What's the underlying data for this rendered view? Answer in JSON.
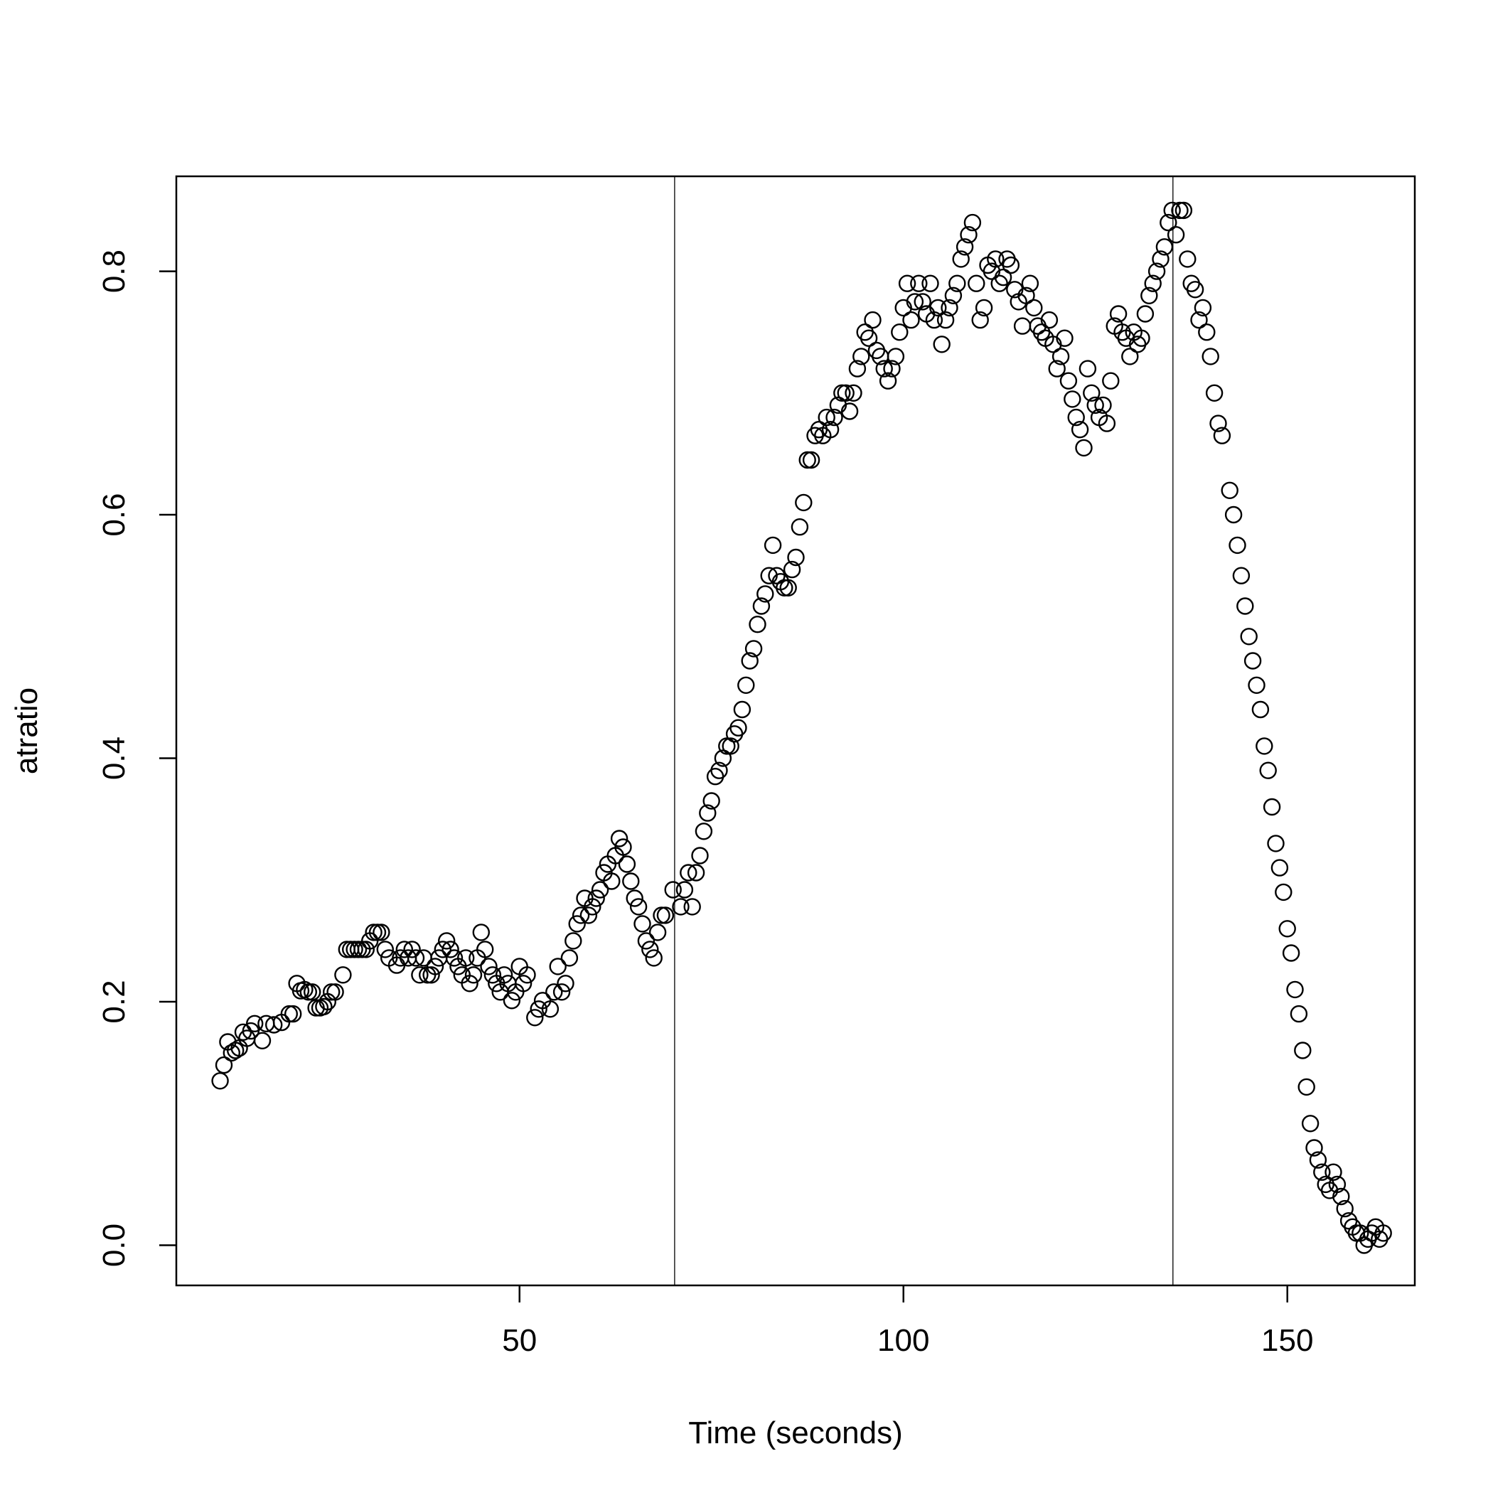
{
  "chart_data": {
    "type": "scatter",
    "title": "",
    "xlabel": "Time (seconds)",
    "ylabel": "atratio",
    "xlim": [
      5.3,
      166.6
    ],
    "ylim": [
      -0.033,
      0.878
    ],
    "xticks": [
      50,
      100,
      150
    ],
    "yticks": [
      0.0,
      0.2,
      0.4,
      0.6,
      0.8
    ],
    "xtick_labels": [
      "50",
      "100",
      "150"
    ],
    "ytick_labels": [
      "0.0",
      "0.2",
      "0.4",
      "0.6",
      "0.8"
    ],
    "vlines": [
      70.2,
      135.1
    ],
    "grid": false,
    "legend": "none",
    "marker": "open-circle",
    "color": "#000000",
    "points": [
      [
        11,
        0.135
      ],
      [
        11.5,
        0.148
      ],
      [
        12,
        0.167
      ],
      [
        12.5,
        0.158
      ],
      [
        13,
        0.16
      ],
      [
        13.5,
        0.162
      ],
      [
        14,
        0.175
      ],
      [
        14.5,
        0.17
      ],
      [
        15,
        0.176
      ],
      [
        15.5,
        0.182
      ],
      [
        16.5,
        0.168
      ],
      [
        17,
        0.182
      ],
      [
        18,
        0.181
      ],
      [
        19,
        0.183
      ],
      [
        20,
        0.19
      ],
      [
        20.5,
        0.19
      ],
      [
        21,
        0.215
      ],
      [
        21.5,
        0.209
      ],
      [
        22,
        0.21
      ],
      [
        22.5,
        0.208
      ],
      [
        23,
        0.208
      ],
      [
        23.5,
        0.195
      ],
      [
        24,
        0.195
      ],
      [
        24.5,
        0.196
      ],
      [
        25,
        0.2
      ],
      [
        25.5,
        0.208
      ],
      [
        26,
        0.208
      ],
      [
        27,
        0.222
      ],
      [
        27.5,
        0.243
      ],
      [
        28,
        0.243
      ],
      [
        28.5,
        0.243
      ],
      [
        29,
        0.243
      ],
      [
        29.5,
        0.243
      ],
      [
        30,
        0.243
      ],
      [
        30.5,
        0.25
      ],
      [
        31,
        0.257
      ],
      [
        31.5,
        0.257
      ],
      [
        32,
        0.257
      ],
      [
        32.5,
        0.243
      ],
      [
        33,
        0.236
      ],
      [
        34,
        0.23
      ],
      [
        34.5,
        0.236
      ],
      [
        35,
        0.243
      ],
      [
        35.5,
        0.236
      ],
      [
        36,
        0.243
      ],
      [
        36.5,
        0.236
      ],
      [
        37,
        0.222
      ],
      [
        37.5,
        0.236
      ],
      [
        38,
        0.222
      ],
      [
        38.5,
        0.222
      ],
      [
        39,
        0.229
      ],
      [
        39.5,
        0.236
      ],
      [
        40,
        0.243
      ],
      [
        40.5,
        0.25
      ],
      [
        41,
        0.243
      ],
      [
        41.5,
        0.236
      ],
      [
        42,
        0.229
      ],
      [
        42.5,
        0.222
      ],
      [
        43,
        0.236
      ],
      [
        43.5,
        0.215
      ],
      [
        44,
        0.222
      ],
      [
        44.5,
        0.236
      ],
      [
        45,
        0.257
      ],
      [
        45.5,
        0.243
      ],
      [
        46,
        0.229
      ],
      [
        46.5,
        0.222
      ],
      [
        47,
        0.215
      ],
      [
        47.5,
        0.208
      ],
      [
        48,
        0.222
      ],
      [
        48.5,
        0.215
      ],
      [
        49,
        0.201
      ],
      [
        49.5,
        0.208
      ],
      [
        50,
        0.229
      ],
      [
        50.5,
        0.215
      ],
      [
        51,
        0.222
      ],
      [
        52,
        0.187
      ],
      [
        52.5,
        0.194
      ],
      [
        53,
        0.201
      ],
      [
        54,
        0.194
      ],
      [
        54.5,
        0.208
      ],
      [
        55,
        0.229
      ],
      [
        55.5,
        0.208
      ],
      [
        56,
        0.215
      ],
      [
        56.5,
        0.236
      ],
      [
        57,
        0.25
      ],
      [
        57.5,
        0.264
      ],
      [
        58,
        0.271
      ],
      [
        58.5,
        0.285
      ],
      [
        59,
        0.271
      ],
      [
        59.5,
        0.278
      ],
      [
        60,
        0.285
      ],
      [
        60.5,
        0.292
      ],
      [
        61,
        0.306
      ],
      [
        61.5,
        0.313
      ],
      [
        62,
        0.299
      ],
      [
        62.5,
        0.32
      ],
      [
        63,
        0.334
      ],
      [
        63.5,
        0.327
      ],
      [
        64,
        0.313
      ],
      [
        64.5,
        0.299
      ],
      [
        65,
        0.285
      ],
      [
        65.5,
        0.278
      ],
      [
        66,
        0.264
      ],
      [
        66.5,
        0.25
      ],
      [
        67,
        0.243
      ],
      [
        67.5,
        0.236
      ],
      [
        68,
        0.257
      ],
      [
        68.5,
        0.271
      ],
      [
        69,
        0.271
      ],
      [
        70,
        0.292
      ],
      [
        71,
        0.278
      ],
      [
        71.5,
        0.292
      ],
      [
        72,
        0.306
      ],
      [
        72.5,
        0.278
      ],
      [
        73,
        0.306
      ],
      [
        73.5,
        0.32
      ],
      [
        74,
        0.34
      ],
      [
        74.5,
        0.355
      ],
      [
        75,
        0.365
      ],
      [
        75.5,
        0.385
      ],
      [
        76,
        0.39
      ],
      [
        76.5,
        0.4
      ],
      [
        77,
        0.41
      ],
      [
        77.5,
        0.41
      ],
      [
        78,
        0.42
      ],
      [
        78.5,
        0.425
      ],
      [
        79,
        0.44
      ],
      [
        79.5,
        0.46
      ],
      [
        80,
        0.48
      ],
      [
        80.5,
        0.49
      ],
      [
        81,
        0.51
      ],
      [
        81.5,
        0.525
      ],
      [
        82,
        0.535
      ],
      [
        82.5,
        0.55
      ],
      [
        83,
        0.575
      ],
      [
        83.5,
        0.55
      ],
      [
        84,
        0.545
      ],
      [
        84.5,
        0.54
      ],
      [
        85,
        0.54
      ],
      [
        85.5,
        0.555
      ],
      [
        86,
        0.565
      ],
      [
        86.5,
        0.59
      ],
      [
        87,
        0.61
      ],
      [
        87.5,
        0.645
      ],
      [
        88,
        0.645
      ],
      [
        88.5,
        0.665
      ],
      [
        89,
        0.67
      ],
      [
        89.5,
        0.665
      ],
      [
        90,
        0.68
      ],
      [
        90.5,
        0.67
      ],
      [
        91,
        0.68
      ],
      [
        91.5,
        0.69
      ],
      [
        92,
        0.7
      ],
      [
        92.5,
        0.7
      ],
      [
        93,
        0.685
      ],
      [
        93.5,
        0.7
      ],
      [
        94,
        0.72
      ],
      [
        94.5,
        0.73
      ],
      [
        95,
        0.75
      ],
      [
        95.5,
        0.745
      ],
      [
        96,
        0.76
      ],
      [
        96.5,
        0.735
      ],
      [
        97,
        0.73
      ],
      [
        97.5,
        0.72
      ],
      [
        98,
        0.71
      ],
      [
        98.5,
        0.72
      ],
      [
        99,
        0.73
      ],
      [
        99.5,
        0.75
      ],
      [
        100,
        0.77
      ],
      [
        100.5,
        0.79
      ],
      [
        101,
        0.76
      ],
      [
        101.5,
        0.775
      ],
      [
        102,
        0.79
      ],
      [
        102.5,
        0.775
      ],
      [
        103,
        0.765
      ],
      [
        103.5,
        0.79
      ],
      [
        104,
        0.76
      ],
      [
        104.5,
        0.77
      ],
      [
        105,
        0.74
      ],
      [
        105.5,
        0.76
      ],
      [
        106,
        0.77
      ],
      [
        106.5,
        0.78
      ],
      [
        107,
        0.79
      ],
      [
        107.5,
        0.81
      ],
      [
        108,
        0.82
      ],
      [
        108.5,
        0.83
      ],
      [
        109,
        0.84
      ],
      [
        109.5,
        0.79
      ],
      [
        110,
        0.76
      ],
      [
        110.5,
        0.77
      ],
      [
        111,
        0.805
      ],
      [
        111.5,
        0.8
      ],
      [
        112,
        0.81
      ],
      [
        112.5,
        0.79
      ],
      [
        113,
        0.795
      ],
      [
        113.5,
        0.81
      ],
      [
        114,
        0.805
      ],
      [
        114.5,
        0.785
      ],
      [
        115,
        0.775
      ],
      [
        115.5,
        0.755
      ],
      [
        116,
        0.78
      ],
      [
        116.5,
        0.79
      ],
      [
        117,
        0.77
      ],
      [
        117.5,
        0.755
      ],
      [
        118,
        0.75
      ],
      [
        118.5,
        0.745
      ],
      [
        119,
        0.76
      ],
      [
        119.5,
        0.74
      ],
      [
        120,
        0.72
      ],
      [
        120.5,
        0.73
      ],
      [
        121,
        0.745
      ],
      [
        121.5,
        0.71
      ],
      [
        122,
        0.695
      ],
      [
        122.5,
        0.68
      ],
      [
        123,
        0.67
      ],
      [
        123.5,
        0.655
      ],
      [
        124,
        0.72
      ],
      [
        124.5,
        0.7
      ],
      [
        125,
        0.69
      ],
      [
        125.5,
        0.68
      ],
      [
        126,
        0.69
      ],
      [
        126.5,
        0.675
      ],
      [
        127,
        0.71
      ],
      [
        127.5,
        0.755
      ],
      [
        128,
        0.765
      ],
      [
        128.5,
        0.75
      ],
      [
        129,
        0.745
      ],
      [
        129.5,
        0.73
      ],
      [
        130,
        0.75
      ],
      [
        130.5,
        0.74
      ],
      [
        131,
        0.745
      ],
      [
        131.5,
        0.765
      ],
      [
        132,
        0.78
      ],
      [
        132.5,
        0.79
      ],
      [
        133,
        0.8
      ],
      [
        133.5,
        0.81
      ],
      [
        134,
        0.82
      ],
      [
        134.5,
        0.84
      ],
      [
        135,
        0.85
      ],
      [
        135.5,
        0.83
      ],
      [
        136,
        0.85
      ],
      [
        136.5,
        0.85
      ],
      [
        137,
        0.81
      ],
      [
        137.5,
        0.79
      ],
      [
        138,
        0.785
      ],
      [
        138.5,
        0.76
      ],
      [
        139,
        0.77
      ],
      [
        139.5,
        0.75
      ],
      [
        140,
        0.73
      ],
      [
        140.5,
        0.7
      ],
      [
        141,
        0.675
      ],
      [
        141.5,
        0.665
      ],
      [
        142.5,
        0.62
      ],
      [
        143,
        0.6
      ],
      [
        143.5,
        0.575
      ],
      [
        144,
        0.55
      ],
      [
        144.5,
        0.525
      ],
      [
        145,
        0.5
      ],
      [
        145.5,
        0.48
      ],
      [
        146,
        0.46
      ],
      [
        146.5,
        0.44
      ],
      [
        147,
        0.41
      ],
      [
        147.5,
        0.39
      ],
      [
        148,
        0.36
      ],
      [
        148.5,
        0.33
      ],
      [
        149,
        0.31
      ],
      [
        149.5,
        0.29
      ],
      [
        150,
        0.26
      ],
      [
        150.5,
        0.24
      ],
      [
        151,
        0.21
      ],
      [
        151.5,
        0.19
      ],
      [
        152,
        0.16
      ],
      [
        152.5,
        0.13
      ],
      [
        153,
        0.1
      ],
      [
        153.5,
        0.08
      ],
      [
        154,
        0.07
      ],
      [
        154.5,
        0.06
      ],
      [
        155,
        0.05
      ],
      [
        155.5,
        0.045
      ],
      [
        156,
        0.06
      ],
      [
        156.5,
        0.05
      ],
      [
        157,
        0.04
      ],
      [
        157.5,
        0.03
      ],
      [
        158,
        0.02
      ],
      [
        158.5,
        0.015
      ],
      [
        159,
        0.01
      ],
      [
        159.5,
        0.01
      ],
      [
        160,
        0.0
      ],
      [
        160.5,
        0.005
      ],
      [
        161,
        0.01
      ],
      [
        161.5,
        0.015
      ],
      [
        162,
        0.005
      ],
      [
        162.5,
        0.01
      ]
    ]
  }
}
